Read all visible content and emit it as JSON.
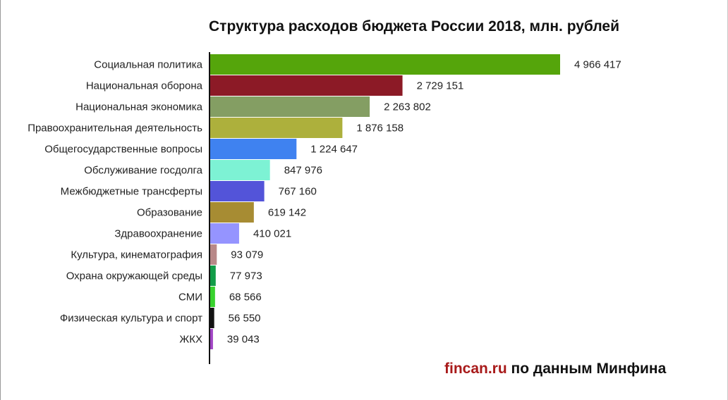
{
  "chart_data": {
    "type": "bar",
    "orientation": "horizontal",
    "title": "Структура расходов бюджета России 2018, млн. рублей",
    "categories": [
      "Социальная политика",
      "Национальная оборона",
      "Национальная экономика",
      "Правоохранительная деятельность",
      "Общегосударственные вопросы",
      "Обслуживание госдолга",
      "Межбюджетные трансферты",
      "Образование",
      "Здравоохранение",
      "Культура, кинематография",
      "Охрана окружающей среды",
      "СМИ",
      "Физическая культура и спорт",
      "ЖКХ"
    ],
    "values": [
      4966417,
      2729151,
      2263802,
      1876158,
      1224647,
      847976,
      767160,
      619142,
      410021,
      93079,
      77973,
      68566,
      56550,
      39043
    ],
    "value_labels": [
      "4 966 417",
      "2 729 151",
      "2 263 802",
      "1 876 158",
      "1 224 647",
      "847 976",
      "767 160",
      "619 142",
      "410 021",
      "93 079",
      "77 973",
      "68 566",
      "56 550",
      "39 043"
    ],
    "colors": [
      "#55a50b",
      "#8c1a26",
      "#849e63",
      "#adb03c",
      "#3f82f0",
      "#7df2d4",
      "#5354d9",
      "#a78c33",
      "#9594ff",
      "#b88888",
      "#119c48",
      "#38d22e",
      "#121212",
      "#a145c4"
    ],
    "xlim": [
      0,
      4966417
    ],
    "grid": false
  },
  "footer": {
    "source_brand": "fincan.ru",
    "source_text": " по данным Минфина"
  }
}
